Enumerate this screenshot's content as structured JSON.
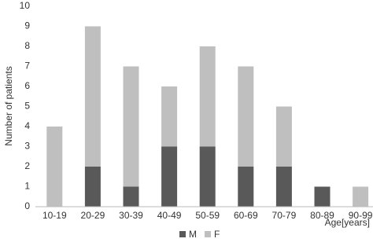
{
  "chart_data": {
    "type": "stacked_bar",
    "y_label": "Number of patients",
    "x_label": "Age[years]",
    "categories": [
      "10-19",
      "20-29",
      "30-39",
      "40-49",
      "50-59",
      "60-69",
      "70-79",
      "80-89",
      "90-99"
    ],
    "series": [
      {
        "name": "M",
        "color": "#595959",
        "values": [
          0,
          2,
          1,
          3,
          3,
          2,
          2,
          1,
          0
        ]
      },
      {
        "name": "F",
        "color": "#bfbfbf",
        "values": [
          4,
          7,
          6,
          3,
          5,
          5,
          3,
          0,
          1
        ]
      }
    ],
    "ylim": [
      0,
      10
    ],
    "yticks": [
      0,
      1,
      2,
      3,
      4,
      5,
      6,
      7,
      8,
      9,
      10
    ],
    "grid": false,
    "legend": "bottom"
  }
}
